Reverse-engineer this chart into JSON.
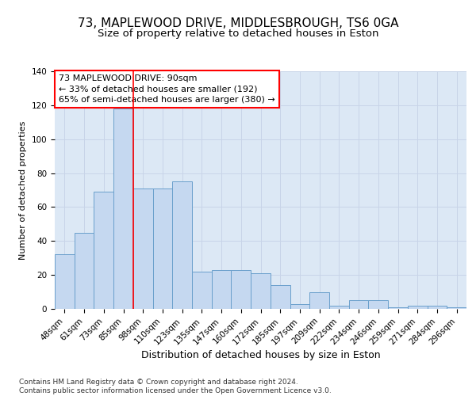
{
  "title1": "73, MAPLEWOOD DRIVE, MIDDLESBROUGH, TS6 0GA",
  "title2": "Size of property relative to detached houses in Eston",
  "xlabel": "Distribution of detached houses by size in Eston",
  "ylabel": "Number of detached properties",
  "bar_labels": [
    "48sqm",
    "61sqm",
    "73sqm",
    "85sqm",
    "98sqm",
    "110sqm",
    "123sqm",
    "135sqm",
    "147sqm",
    "160sqm",
    "172sqm",
    "185sqm",
    "197sqm",
    "209sqm",
    "222sqm",
    "234sqm",
    "246sqm",
    "259sqm",
    "271sqm",
    "284sqm",
    "296sqm"
  ],
  "bar_values": [
    32,
    45,
    69,
    118,
    71,
    71,
    75,
    22,
    23,
    23,
    21,
    14,
    3,
    10,
    2,
    5,
    5,
    1,
    2,
    2,
    1
  ],
  "bar_color": "#c5d8f0",
  "bar_edge_color": "#6aa0cc",
  "vline_x": 3.5,
  "vline_color": "red",
  "annotation_text": "73 MAPLEWOOD DRIVE: 90sqm\n← 33% of detached houses are smaller (192)\n65% of semi-detached houses are larger (380) →",
  "annotation_box_color": "white",
  "annotation_box_edge_color": "red",
  "ylim": [
    0,
    140
  ],
  "yticks": [
    0,
    20,
    40,
    60,
    80,
    100,
    120,
    140
  ],
  "grid_color": "#c8d4e8",
  "background_color": "#dce8f5",
  "footer": "Contains HM Land Registry data © Crown copyright and database right 2024.\nContains public sector information licensed under the Open Government Licence v3.0.",
  "title1_fontsize": 11,
  "title2_fontsize": 9.5,
  "xlabel_fontsize": 9,
  "ylabel_fontsize": 8,
  "tick_fontsize": 7.5,
  "annotation_fontsize": 8,
  "footer_fontsize": 6.5
}
